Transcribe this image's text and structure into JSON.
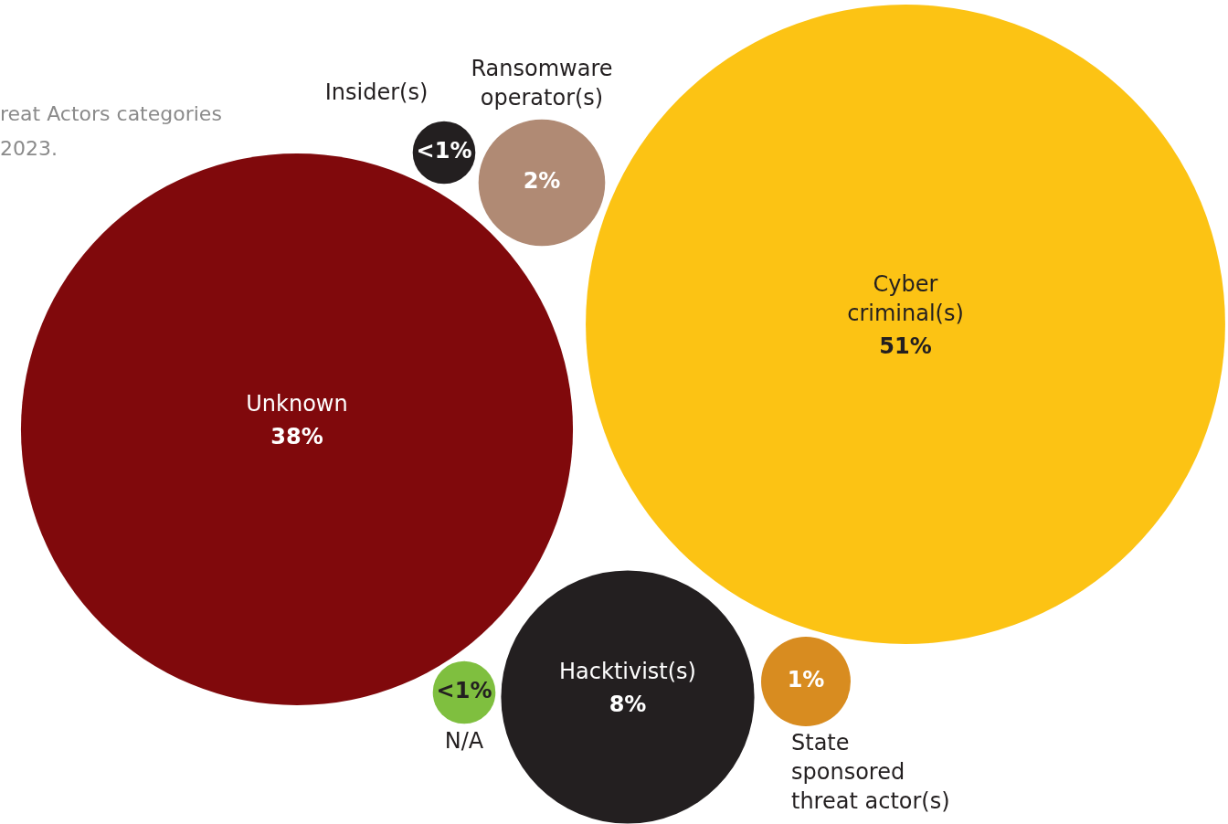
{
  "chart_data": {
    "type": "other",
    "categories": [
      "Cyber criminal(s)",
      "Unknown",
      "Hacktivist(s)",
      "Ransomware operator(s)",
      "State sponsored threat actor(s)",
      "Insider(s)",
      "N/A"
    ],
    "values": [
      51,
      38,
      8,
      2,
      1,
      null,
      null
    ],
    "value_labels": [
      "51%",
      "38%",
      "8%",
      "2%",
      "1%",
      "<1%",
      "<1%"
    ],
    "colors": [
      "#fcc314",
      "#80090c",
      "#231f20",
      "#b08a74",
      "#d88c20",
      "#231f20",
      "#7fbf3f"
    ],
    "annotations": [
      "reat Actors categories",
      "2023."
    ]
  }
}
